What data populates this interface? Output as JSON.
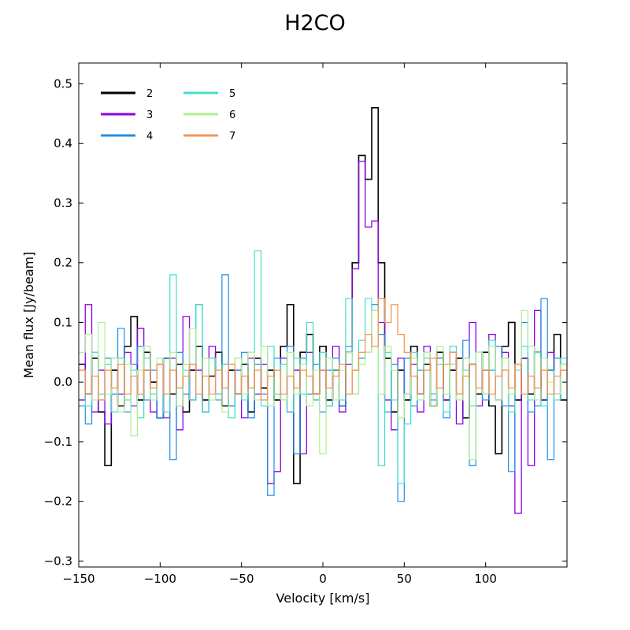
{
  "chart_data": {
    "type": "line",
    "title": "H2CO",
    "xlabel": "Velocity  [km/s]",
    "ylabel": "Mean flux [Jy/beam]",
    "xlim": [
      -150,
      150
    ],
    "ylim": [
      -0.31,
      0.535
    ],
    "xticks": [
      -150,
      -100,
      -50,
      0,
      50,
      100
    ],
    "xtick_labels": [
      "−150",
      "−100",
      "−50",
      "0",
      "50",
      "100"
    ],
    "yticks": [
      -0.3,
      -0.2,
      -0.1,
      0.0,
      0.1,
      0.2,
      0.3,
      0.4,
      0.5
    ],
    "ytick_labels": [
      "−0.3",
      "−0.2",
      "−0.1",
      "0.0",
      "0.1",
      "0.2",
      "0.3",
      "0.4",
      "0.5"
    ],
    "grid": false,
    "legend_position": "top-left",
    "legend_columns": 2,
    "step_style": "steps-mid",
    "x": [
      -148,
      -144,
      -140,
      -136,
      -132,
      -128,
      -124,
      -120,
      -116,
      -112,
      -108,
      -104,
      -100,
      -96,
      -92,
      -88,
      -84,
      -80,
      -76,
      -72,
      -68,
      -64,
      -60,
      -56,
      -52,
      -48,
      -44,
      -40,
      -36,
      -32,
      -28,
      -24,
      -20,
      -16,
      -12,
      -8,
      -4,
      0,
      4,
      8,
      12,
      16,
      20,
      24,
      28,
      32,
      36,
      40,
      44,
      48,
      52,
      56,
      60,
      64,
      68,
      72,
      76,
      80,
      84,
      88,
      92,
      96,
      100,
      104,
      108,
      112,
      116,
      120,
      124,
      128,
      132,
      136,
      140,
      144,
      148
    ],
    "series": [
      {
        "name": "2",
        "color": "#000000",
        "width": 1.6,
        "values": [
          0.03,
          -0.02,
          0.04,
          -0.05,
          -0.14,
          0.02,
          -0.04,
          0.06,
          0.11,
          -0.03,
          0.05,
          0.0,
          -0.06,
          0.04,
          -0.02,
          0.03,
          -0.05,
          0.02,
          0.06,
          -0.03,
          0.01,
          0.05,
          -0.04,
          0.02,
          -0.02,
          0.03,
          -0.05,
          0.04,
          -0.01,
          0.02,
          -0.03,
          0.06,
          0.13,
          -0.17,
          0.05,
          0.08,
          -0.02,
          0.06,
          -0.03,
          0.02,
          -0.04,
          0.05,
          0.2,
          0.38,
          0.34,
          0.46,
          0.2,
          0.04,
          -0.05,
          0.02,
          -0.03,
          0.06,
          -0.02,
          0.03,
          -0.04,
          0.05,
          -0.03,
          0.02,
          0.04,
          -0.06,
          0.03,
          -0.02,
          0.05,
          -0.04,
          -0.12,
          0.06,
          0.1,
          -0.03,
          0.04,
          -0.02,
          0.05,
          -0.03,
          0.02,
          0.08,
          -0.03
        ]
      },
      {
        "name": "3",
        "color": "#8a00e6",
        "width": 1.3,
        "values": [
          -0.03,
          0.13,
          -0.05,
          0.02,
          -0.07,
          0.04,
          -0.02,
          0.05,
          -0.04,
          0.09,
          0.02,
          -0.05,
          0.03,
          -0.06,
          0.04,
          -0.08,
          0.11,
          -0.03,
          0.02,
          -0.05,
          0.06,
          -0.02,
          0.03,
          -0.04,
          0.02,
          -0.06,
          0.04,
          -0.02,
          0.03,
          -0.17,
          -0.15,
          0.04,
          -0.05,
          0.02,
          -0.12,
          0.05,
          -0.03,
          0.02,
          -0.04,
          0.06,
          -0.05,
          0.03,
          0.19,
          0.37,
          0.26,
          0.27,
          0.1,
          -0.03,
          -0.08,
          0.04,
          -0.02,
          0.03,
          -0.05,
          0.06,
          -0.02,
          0.04,
          -0.03,
          0.05,
          -0.07,
          0.04,
          0.1,
          -0.04,
          0.02,
          0.08,
          -0.03,
          0.05,
          -0.04,
          -0.22,
          0.04,
          -0.14,
          0.12,
          -0.03,
          0.05,
          -0.02,
          0.03
        ]
      },
      {
        "name": "4",
        "color": "#1f8ee6",
        "width": 1.2,
        "values": [
          -0.04,
          -0.07,
          0.05,
          -0.03,
          0.04,
          -0.02,
          0.09,
          -0.05,
          0.03,
          0.06,
          -0.03,
          0.02,
          -0.06,
          0.04,
          -0.13,
          0.05,
          -0.02,
          0.03,
          0.13,
          -0.05,
          0.04,
          -0.03,
          0.18,
          -0.04,
          0.02,
          0.05,
          -0.06,
          0.03,
          -0.02,
          -0.19,
          0.04,
          -0.03,
          0.06,
          -0.12,
          0.04,
          -0.02,
          0.03,
          -0.05,
          0.02,
          0.04,
          -0.04,
          0.06,
          -0.02,
          0.04,
          0.05,
          0.13,
          0.08,
          -0.05,
          0.03,
          -0.2,
          0.04,
          -0.04,
          0.02,
          0.05,
          -0.03,
          0.04,
          -0.06,
          0.03,
          -0.02,
          0.07,
          -0.14,
          0.05,
          -0.03,
          0.02,
          0.06,
          -0.04,
          -0.15,
          0.03,
          0.1,
          -0.05,
          -0.04,
          0.14,
          -0.13,
          0.04,
          0.02
        ]
      },
      {
        "name": "5",
        "color": "#40e0c8",
        "width": 1.2,
        "values": [
          0.02,
          -0.04,
          0.05,
          -0.02,
          0.03,
          -0.05,
          0.04,
          -0.03,
          0.02,
          -0.06,
          0.04,
          -0.02,
          0.03,
          -0.05,
          0.18,
          -0.04,
          0.02,
          -0.03,
          0.13,
          -0.05,
          0.04,
          -0.02,
          0.03,
          -0.06,
          0.04,
          -0.03,
          0.05,
          0.22,
          -0.04,
          0.06,
          -0.02,
          0.03,
          -0.05,
          0.04,
          -0.02,
          0.1,
          -0.03,
          0.05,
          -0.04,
          0.02,
          -0.03,
          0.14,
          0.02,
          0.07,
          0.14,
          0.12,
          -0.14,
          0.05,
          -0.03,
          -0.17,
          -0.07,
          0.05,
          -0.03,
          0.04,
          -0.02,
          0.03,
          -0.05,
          0.06,
          -0.03,
          0.02,
          -0.04,
          0.05,
          -0.02,
          0.07,
          -0.03,
          0.04,
          -0.05,
          0.02,
          0.06,
          -0.03,
          0.05,
          -0.04,
          0.02,
          -0.03,
          0.04
        ]
      },
      {
        "name": "6",
        "color": "#aef090",
        "width": 1.2,
        "values": [
          0.05,
          0.08,
          -0.03,
          0.1,
          -0.02,
          0.04,
          -0.05,
          0.03,
          -0.09,
          0.02,
          0.06,
          -0.03,
          0.04,
          -0.02,
          0.05,
          -0.04,
          0.03,
          0.09,
          -0.02,
          0.04,
          -0.03,
          0.02,
          -0.05,
          0.03,
          0.04,
          -0.02,
          0.05,
          -0.03,
          0.06,
          -0.04,
          0.02,
          -0.03,
          0.05,
          -0.02,
          0.03,
          -0.04,
          0.02,
          -0.12,
          0.04,
          -0.03,
          0.02,
          0.05,
          -0.02,
          0.03,
          0.05,
          0.12,
          -0.02,
          0.06,
          0.02,
          -0.06,
          -0.02,
          0.04,
          -0.03,
          0.05,
          -0.04,
          0.06,
          -0.02,
          0.03,
          -0.03,
          0.04,
          -0.13,
          0.05,
          -0.02,
          0.06,
          -0.03,
          0.04,
          -0.02,
          0.03,
          0.12,
          0.06,
          -0.03,
          0.04,
          0.0,
          -0.02,
          0.03
        ]
      },
      {
        "name": "7",
        "color": "#f59650",
        "width": 1.3,
        "values": [
          0.02,
          -0.02,
          0.01,
          -0.03,
          0.02,
          -0.01,
          0.03,
          -0.02,
          0.01,
          -0.02,
          0.02,
          -0.01,
          0.03,
          -0.02,
          0.02,
          -0.01,
          0.01,
          0.03,
          -0.02,
          0.01,
          -0.02,
          0.02,
          -0.01,
          0.03,
          -0.02,
          0.01,
          -0.01,
          0.02,
          -0.03,
          0.01,
          0.02,
          -0.02,
          0.01,
          -0.01,
          0.02,
          0.01,
          -0.02,
          0.02,
          -0.01,
          0.01,
          0.03,
          -0.02,
          0.02,
          0.05,
          0.08,
          0.06,
          0.14,
          0.1,
          0.13,
          0.08,
          0.05,
          0.01,
          -0.02,
          0.02,
          0.04,
          -0.01,
          0.03,
          0.05,
          -0.02,
          0.01,
          0.03,
          -0.01,
          0.02,
          -0.02,
          0.01,
          0.02,
          -0.01,
          0.03,
          -0.02,
          0.01,
          -0.01,
          0.02,
          -0.02,
          0.01,
          0.02
        ]
      }
    ]
  }
}
